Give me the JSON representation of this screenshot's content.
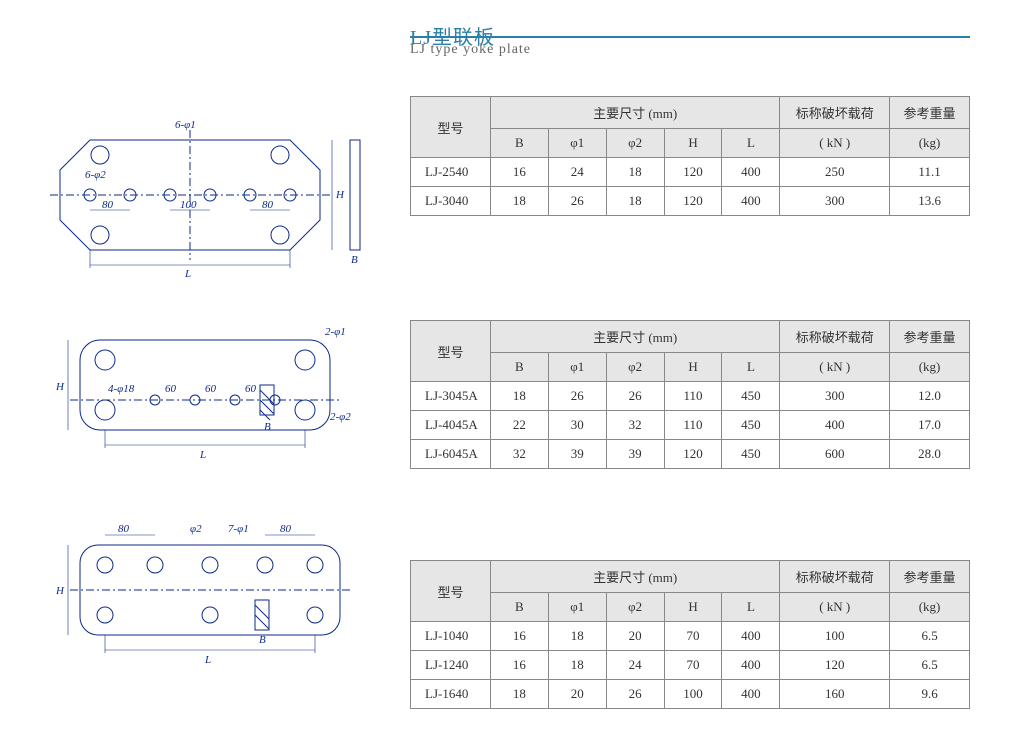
{
  "title": "LJ型联板",
  "subtitle": "LJ type yoke plate",
  "colors": {
    "title": "#2a7fa8",
    "table_header_bg": "#e6e6e6",
    "table_border": "#888888",
    "diagram_stroke": "#0b2a8a",
    "text": "#333333"
  },
  "headers": {
    "model": "型号",
    "dims_group": "主要尺寸 (mm)",
    "B": "B",
    "phi1": "φ1",
    "phi2": "φ2",
    "H": "H",
    "L": "L",
    "load": "标称破坏载荷",
    "load_unit": "( kN )",
    "weight": "参考重量",
    "weight_unit": "(kg)"
  },
  "table1": {
    "rows": [
      {
        "model": "LJ-2540",
        "B": "16",
        "phi1": "24",
        "phi2": "18",
        "H": "120",
        "L": "400",
        "load": "250",
        "weight": "11.1"
      },
      {
        "model": "LJ-3040",
        "B": "18",
        "phi1": "26",
        "phi2": "18",
        "H": "120",
        "L": "400",
        "load": "300",
        "weight": "13.6"
      }
    ]
  },
  "table2": {
    "rows": [
      {
        "model": "LJ-3045A",
        "B": "18",
        "phi1": "26",
        "phi2": "26",
        "H": "110",
        "L": "450",
        "load": "300",
        "weight": "12.0"
      },
      {
        "model": "LJ-4045A",
        "B": "22",
        "phi1": "30",
        "phi2": "32",
        "H": "110",
        "L": "450",
        "load": "400",
        "weight": "17.0"
      },
      {
        "model": "LJ-6045A",
        "B": "32",
        "phi1": "39",
        "phi2": "39",
        "H": "120",
        "L": "450",
        "load": "600",
        "weight": "28.0"
      }
    ]
  },
  "table3": {
    "rows": [
      {
        "model": "LJ-1040",
        "B": "16",
        "phi1": "18",
        "phi2": "20",
        "H": "70",
        "L": "400",
        "load": "100",
        "weight": "6.5"
      },
      {
        "model": "LJ-1240",
        "B": "16",
        "phi1": "18",
        "phi2": "24",
        "H": "70",
        "L": "400",
        "load": "120",
        "weight": "6.5"
      },
      {
        "model": "LJ-1640",
        "B": "18",
        "phi1": "20",
        "phi2": "26",
        "H": "100",
        "L": "400",
        "load": "160",
        "weight": "9.6"
      }
    ]
  },
  "diagram_labels": {
    "d1_top": "6-φ1",
    "d1_left": "6-φ2",
    "d1_80": "80",
    "d1_100": "100",
    "d1_L": "L",
    "d1_H": "H",
    "d1_B": "B",
    "d2_top": "2-φ1",
    "d2_bot": "2-φ2",
    "d2_mid": "4-φ18",
    "d2_60": "60",
    "d2_L": "L",
    "d2_H": "H",
    "d2_B": "B",
    "d3_80": "80",
    "d3_phi2": "φ2",
    "d3_7phi1": "7-φ1",
    "d3_L": "L",
    "d3_H": "H",
    "d3_B": "B"
  }
}
